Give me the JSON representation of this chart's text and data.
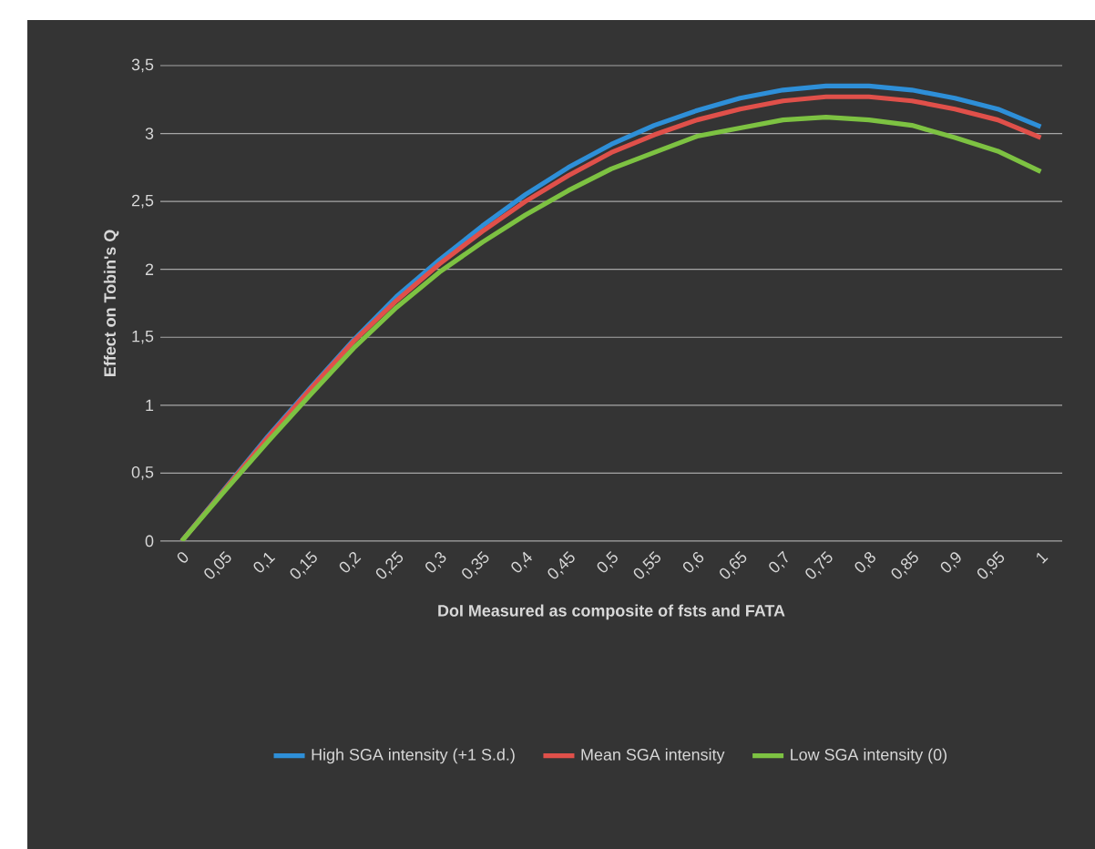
{
  "chart_data": {
    "type": "line",
    "ylabel": "Effect on Tobin's Q",
    "xlabel": "DoI Measured as composite of fsts and FATA",
    "categories": [
      "0",
      "0,05",
      "0,1",
      "0,15",
      "0,2",
      "0,25",
      "0,3",
      "0,35",
      "0,4",
      "0,45",
      "0,5",
      "0,55",
      "0,6",
      "0,65",
      "0,7",
      "0,75",
      "0,8",
      "0,85",
      "0,9",
      "0,95",
      "1"
    ],
    "series": [
      {
        "name": "High SGA intensity (+1 S.d.)",
        "color": "#2e8fd8",
        "values": [
          0,
          null,
          0.77,
          1.13,
          1.48,
          1.8,
          2.07,
          2.32,
          2.55,
          2.75,
          2.92,
          3.06,
          3.17,
          3.26,
          3.32,
          3.35,
          3.35,
          3.32,
          3.26,
          3.18,
          3.05
        ]
      },
      {
        "name": "Mean SGA intensity",
        "color": "#e0504a",
        "values": [
          0,
          0.38,
          0.76,
          1.12,
          1.47,
          1.77,
          2.04,
          2.28,
          2.5,
          2.69,
          2.86,
          2.99,
          3.1,
          3.18,
          3.24,
          3.27,
          3.27,
          3.24,
          3.18,
          3.1,
          2.97
        ]
      },
      {
        "name": "Low SGA intensity (0)",
        "color": "#7dc242",
        "values": [
          0,
          0.37,
          0.73,
          1.08,
          1.42,
          1.72,
          1.98,
          2.2,
          2.4,
          2.58,
          2.74,
          2.86,
          2.98,
          3.04,
          3.1,
          3.12,
          3.1,
          3.06,
          2.97,
          2.87,
          2.72
        ]
      }
    ],
    "ylim": [
      0,
      3.5
    ],
    "yticks": [
      0,
      {
        "value": 0.5,
        "label": "0,5"
      },
      1,
      {
        "value": 1.5,
        "label": "1,5"
      },
      2,
      {
        "value": 2.5,
        "label": "2,5"
      },
      3,
      {
        "value": 3.5,
        "label": "3,5"
      }
    ],
    "grid": "y",
    "legend": "bottom",
    "marker": "none",
    "line_style": "solid"
  }
}
